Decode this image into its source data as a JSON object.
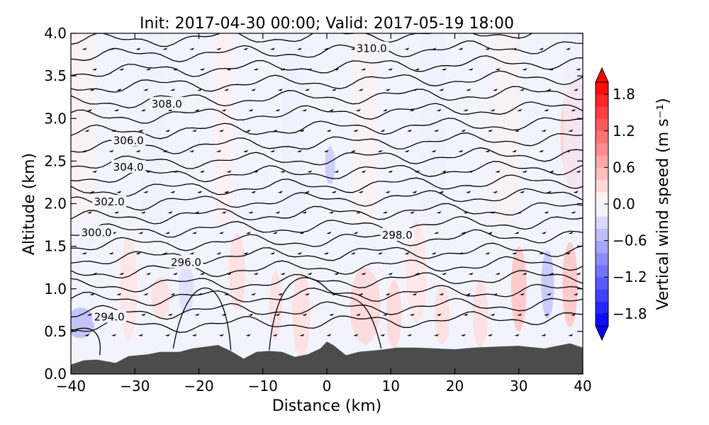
{
  "chart_data": {
    "type": "contour-cross-section",
    "title": "Init: 2017-04-30 00:00; Valid: 2017-05-19 18:00",
    "xlabel": "Distance (km)",
    "ylabel": "Altitude (km)",
    "xlim": [
      -40,
      40
    ],
    "ylim": [
      0.0,
      4.0
    ],
    "xticks": [
      -40,
      -30,
      -20,
      -10,
      0,
      10,
      20,
      30,
      40
    ],
    "xtick_labels": [
      "−40",
      "−30",
      "−20",
      "−10",
      "0",
      "10",
      "20",
      "30",
      "40"
    ],
    "yticks": [
      0.0,
      0.5,
      1.0,
      1.5,
      2.0,
      2.5,
      3.0,
      3.5,
      4.0
    ],
    "ytick_labels": [
      "0.0",
      "0.5",
      "1.0",
      "1.5",
      "2.0",
      "2.5",
      "3.0",
      "3.5",
      "4.0"
    ],
    "colorbar": {
      "label": "Vertical wind speed (m s⁻¹)",
      "vmin": -2.0,
      "vmax": 2.0,
      "step": 0.2,
      "ticks": [
        1.8,
        1.2,
        0.6,
        0.0,
        -0.6,
        -1.2,
        -1.8
      ],
      "tick_labels": [
        "1.8",
        "1.2",
        "0.6",
        "0.0",
        "−0.6",
        "−1.2",
        "−1.8"
      ],
      "colormap": "bwr"
    },
    "contour_labels": [
      {
        "text": "310.0",
        "x": 7,
        "y": 3.82
      },
      {
        "text": "308.0",
        "x": -25,
        "y": 3.17
      },
      {
        "text": "306.0",
        "x": -31,
        "y": 2.74
      },
      {
        "text": "304.0",
        "x": -31,
        "y": 2.43
      },
      {
        "text": "302.0",
        "x": -34,
        "y": 2.02
      },
      {
        "text": "300.0",
        "x": -36,
        "y": 1.66
      },
      {
        "text": "298.0",
        "x": 11,
        "y": 1.63
      },
      {
        "text": "296.0",
        "x": -22,
        "y": 1.31
      },
      {
        "text": "294.0",
        "x": -34,
        "y": 0.67
      }
    ],
    "terrain": {
      "x": [
        -40,
        -38,
        -36,
        -33,
        -31,
        -28,
        -26,
        -23,
        -21,
        -19,
        -17,
        -15,
        -13,
        -11,
        -9,
        -7,
        -5,
        -3,
        -1,
        0,
        1,
        3,
        5,
        8,
        11,
        14,
        17,
        20,
        23,
        26,
        30,
        34,
        36,
        38,
        40
      ],
      "y": [
        0.11,
        0.16,
        0.17,
        0.13,
        0.21,
        0.23,
        0.26,
        0.26,
        0.3,
        0.32,
        0.34,
        0.27,
        0.18,
        0.26,
        0.27,
        0.26,
        0.2,
        0.23,
        0.3,
        0.38,
        0.34,
        0.22,
        0.26,
        0.28,
        0.31,
        0.31,
        0.3,
        0.29,
        0.31,
        0.32,
        0.33,
        0.3,
        0.33,
        0.36,
        0.31
      ]
    }
  }
}
